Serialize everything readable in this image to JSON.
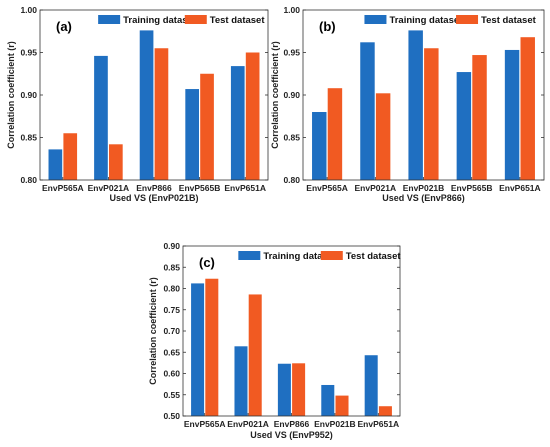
{
  "colors": {
    "training": "#1F6FC1",
    "test": "#F15A22",
    "axis": "#333333"
  },
  "chart_data": [
    {
      "type": "bar",
      "panel_label": "(a)",
      "xlabel": "Used VS (EnvP021B)",
      "ylabel": "Correlation coefficient (r)",
      "ylim": [
        0.8,
        1.0
      ],
      "yticks": [
        "0.80",
        "0.85",
        "0.90",
        "0.95",
        "1.00"
      ],
      "categories": [
        "EnvP565A",
        "EnvP021A",
        "EnvP866",
        "EnvP565B",
        "EnvP651A"
      ],
      "series": [
        {
          "name": "Training dataset",
          "values": [
            0.836,
            0.946,
            0.976,
            0.907,
            0.934
          ]
        },
        {
          "name": "Test dataset",
          "values": [
            0.855,
            0.842,
            0.955,
            0.925,
            0.95
          ]
        }
      ],
      "legend": "top-right"
    },
    {
      "type": "bar",
      "panel_label": "(b)",
      "xlabel": "Used VS (EnvP866)",
      "ylabel": "Correlation coefficient (r)",
      "ylim": [
        0.8,
        1.0
      ],
      "yticks": [
        "0.80",
        "0.85",
        "0.90",
        "0.95",
        "1.00"
      ],
      "categories": [
        "EnvP565A",
        "EnvP021A",
        "EnvP021B",
        "EnvP565B",
        "EnvP651A"
      ],
      "series": [
        {
          "name": "Training dataset",
          "values": [
            0.88,
            0.962,
            0.976,
            0.927,
            0.953
          ]
        },
        {
          "name": "Test dataset",
          "values": [
            0.908,
            0.902,
            0.955,
            0.947,
            0.968
          ]
        }
      ],
      "legend": "top-right"
    },
    {
      "type": "bar",
      "panel_label": "(c)",
      "xlabel": "Used VS (EnvP952)",
      "ylabel": "Correlation coefficient (r)",
      "ylim": [
        0.5,
        0.9
      ],
      "yticks": [
        "0.50",
        "0.55",
        "0.60",
        "0.65",
        "0.70",
        "0.75",
        "0.80",
        "0.85",
        "0.90"
      ],
      "categories": [
        "EnvP565A",
        "EnvP021A",
        "EnvP866",
        "EnvP021B",
        "EnvP651A"
      ],
      "series": [
        {
          "name": "Training dataset",
          "values": [
            0.812,
            0.664,
            0.623,
            0.573,
            0.643
          ]
        },
        {
          "name": "Test dataset",
          "values": [
            0.823,
            0.786,
            0.624,
            0.548,
            0.523
          ]
        }
      ],
      "legend": "top-right"
    }
  ]
}
